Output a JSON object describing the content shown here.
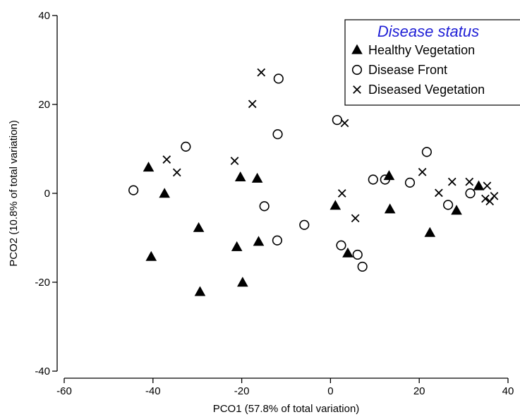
{
  "chart_data": {
    "type": "scatter",
    "xlabel": "PCO1 (57.8% of total variation)",
    "ylabel": "PCO2 (10.8% of total variation)",
    "xlim": [
      -60,
      40
    ],
    "ylim": [
      -40,
      40
    ],
    "x_ticks": [
      "-60",
      "-40",
      "-20",
      "0",
      "20",
      "40"
    ],
    "y_ticks": [
      "-40",
      "-20",
      "0",
      "20",
      "40"
    ],
    "grid": false,
    "legend": {
      "title": "Disease status",
      "placement": "top-right",
      "title_color": "#1f1fd6"
    },
    "series": [
      {
        "name": "Healthy Vegetation",
        "marker": "filled-triangle",
        "points": [
          [
            -41,
            5.8
          ],
          [
            -37.4,
            -0.1
          ],
          [
            -40.4,
            -14.3
          ],
          [
            -29.7,
            -7.8
          ],
          [
            -29.4,
            -22.2
          ],
          [
            -20.3,
            3.6
          ],
          [
            -16.5,
            3.3
          ],
          [
            -21.1,
            -12.1
          ],
          [
            -16.2,
            -10.9
          ],
          [
            -19.8,
            -20.1
          ],
          [
            1.1,
            -2.8
          ],
          [
            3.9,
            -13.5
          ],
          [
            13.2,
            3.9
          ],
          [
            13.4,
            -3.6
          ],
          [
            22.4,
            -8.9
          ],
          [
            28.4,
            -3.9
          ],
          [
            33.4,
            1.6
          ]
        ]
      },
      {
        "name": "Disease Front",
        "marker": "open-circle",
        "points": [
          [
            -44.4,
            0.7
          ],
          [
            -32.6,
            10.5
          ],
          [
            -11.7,
            25.8
          ],
          [
            -11.9,
            13.3
          ],
          [
            -14.9,
            -2.9
          ],
          [
            -12.0,
            -10.6
          ],
          [
            -5.9,
            -7.1
          ],
          [
            1.5,
            16.5
          ],
          [
            2.4,
            -11.7
          ],
          [
            6.1,
            -13.8
          ],
          [
            7.2,
            -16.5
          ],
          [
            9.6,
            3.1
          ],
          [
            12.3,
            3.1
          ],
          [
            17.9,
            2.4
          ],
          [
            21.7,
            9.3
          ],
          [
            26.5,
            -2.6
          ],
          [
            31.5,
            0.0
          ]
        ]
      },
      {
        "name": "Diseased Vegetation",
        "marker": "x-cross",
        "points": [
          [
            -36.9,
            7.6
          ],
          [
            -34.6,
            4.7
          ],
          [
            -15.6,
            27.2
          ],
          [
            -17.6,
            20.1
          ],
          [
            -21.6,
            7.3
          ],
          [
            3.2,
            15.8
          ],
          [
            2.6,
            0.0
          ],
          [
            5.6,
            -5.6
          ],
          [
            20.7,
            4.8
          ],
          [
            24.4,
            0.1
          ],
          [
            27.4,
            2.6
          ],
          [
            31.3,
            2.6
          ],
          [
            35.3,
            1.7
          ],
          [
            34.9,
            -1.2
          ],
          [
            35.9,
            -1.8
          ],
          [
            36.9,
            -0.6
          ]
        ]
      }
    ]
  }
}
